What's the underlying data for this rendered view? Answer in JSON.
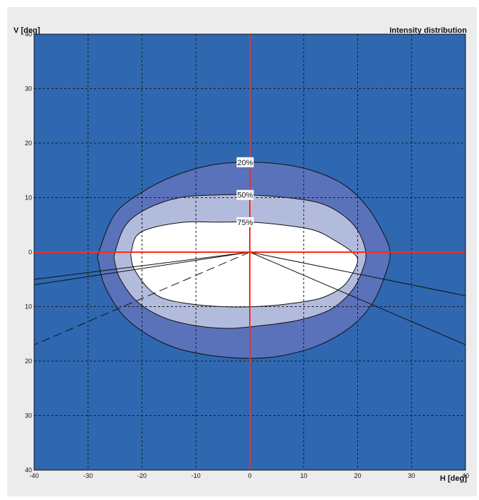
{
  "chart_data": {
    "type": "contour",
    "title": "Intensity distribution",
    "xlabel": "H [deg]",
    "ylabel": "V [deg]",
    "xlim": [
      -40,
      40
    ],
    "ylim": [
      -40,
      40
    ],
    "x_ticks": [
      -40,
      -30,
      -20,
      -10,
      0,
      10,
      20,
      30,
      40
    ],
    "y_ticks": [
      40,
      30,
      20,
      10,
      0,
      10,
      20,
      30,
      40
    ],
    "grid": true,
    "colors": {
      "background": "#2f68b0",
      "level_20": "#5a72ba",
      "level_50": "#b3bbdd",
      "level_75": "#ffffff",
      "crosshair": "#ff2a1a",
      "contour_line": "#111111"
    },
    "contours": [
      {
        "label": "20%",
        "label_pos": [
          -1,
          16.5
        ],
        "points": [
          [
            -28,
            0
          ],
          [
            -25,
            7
          ],
          [
            -20,
            11
          ],
          [
            -14,
            14
          ],
          [
            -7,
            16
          ],
          [
            0,
            16.5
          ],
          [
            7,
            16
          ],
          [
            13,
            14.5
          ],
          [
            18,
            12
          ],
          [
            22,
            8
          ],
          [
            25,
            3
          ],
          [
            26,
            0
          ],
          [
            25.5,
            -3
          ],
          [
            23,
            -9
          ],
          [
            19,
            -13.5
          ],
          [
            13,
            -17
          ],
          [
            6,
            -19
          ],
          [
            0,
            -19.5
          ],
          [
            -7,
            -19
          ],
          [
            -14,
            -17.5
          ],
          [
            -20,
            -14.5
          ],
          [
            -24,
            -11
          ],
          [
            -27,
            -6
          ],
          [
            -28,
            -2
          ]
        ]
      },
      {
        "label": "50%",
        "label_pos": [
          -1,
          10.5
        ],
        "points": [
          [
            -25,
            0
          ],
          [
            -23,
            5
          ],
          [
            -19,
            8
          ],
          [
            -13,
            10
          ],
          [
            -6,
            10.5
          ],
          [
            0,
            10.5
          ],
          [
            7,
            10
          ],
          [
            13,
            9
          ],
          [
            17,
            7
          ],
          [
            20,
            4
          ],
          [
            21.5,
            0
          ],
          [
            21,
            -3
          ],
          [
            19,
            -7
          ],
          [
            15,
            -10.5
          ],
          [
            9,
            -12.5
          ],
          [
            2,
            -13.5
          ],
          [
            -4,
            -14
          ],
          [
            -10,
            -13.5
          ],
          [
            -16,
            -12
          ],
          [
            -21,
            -9
          ],
          [
            -24,
            -5
          ],
          [
            -25,
            -2
          ]
        ]
      },
      {
        "label": "75%",
        "label_pos": [
          -1,
          5.5
        ],
        "points": [
          [
            -22,
            0
          ],
          [
            -21,
            3
          ],
          [
            -18,
            4.5
          ],
          [
            -12,
            5.5
          ],
          [
            -6,
            5.5
          ],
          [
            0,
            5.5
          ],
          [
            6,
            5
          ],
          [
            12,
            4
          ],
          [
            16,
            2
          ],
          [
            19,
            0
          ],
          [
            20,
            -1.5
          ],
          [
            19,
            -4
          ],
          [
            17,
            -6.5
          ],
          [
            13,
            -8.5
          ],
          [
            7,
            -9.5
          ],
          [
            1,
            -10
          ],
          [
            -5,
            -10
          ],
          [
            -11,
            -9.5
          ],
          [
            -16,
            -8.5
          ],
          [
            -19,
            -6.5
          ],
          [
            -21.5,
            -3
          ],
          [
            -22,
            -1
          ]
        ]
      }
    ],
    "rays": [
      {
        "to": [
          -40,
          -5
        ],
        "style": "solid"
      },
      {
        "to": [
          -40,
          -6
        ],
        "style": "solid"
      },
      {
        "to": [
          -40,
          -17
        ],
        "style": "dashed"
      },
      {
        "to": [
          40,
          -8
        ],
        "style": "solid"
      },
      {
        "to": [
          40,
          -17
        ],
        "style": "solid"
      }
    ]
  }
}
